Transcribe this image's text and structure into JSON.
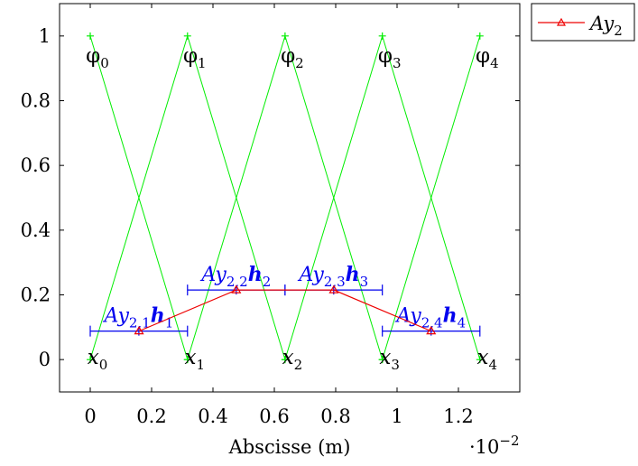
{
  "chart_data": {
    "type": "line",
    "xlabel": "Abscisse (m)",
    "x_scale_label": "·10",
    "x_scale_exponent": "−2",
    "xlim": [
      -0.1,
      1.4
    ],
    "ylim": [
      -0.1,
      1.1
    ],
    "x_ticks": [
      0,
      0.2,
      0.4,
      0.6,
      0.8,
      1,
      1.2
    ],
    "x_tick_labels": [
      "0",
      "0.2",
      "0.4",
      "0.6",
      "0.8",
      "1",
      "1.2"
    ],
    "y_ticks": [
      0,
      0.2,
      0.4,
      0.6,
      0.8,
      1
    ],
    "y_tick_labels": [
      "0",
      "0.2",
      "0.4",
      "0.6",
      "0.8",
      "1"
    ],
    "nodes": [
      0,
      0.317,
      0.635,
      0.952,
      1.27
    ],
    "node_labels": [
      {
        "base": "x",
        "sub": "0"
      },
      {
        "base": "x",
        "sub": "1"
      },
      {
        "base": "x",
        "sub": "2"
      },
      {
        "base": "x",
        "sub": "3"
      },
      {
        "base": "x",
        "sub": "4"
      }
    ],
    "basis_labels": [
      {
        "base": "φ",
        "sub": "0"
      },
      {
        "base": "φ",
        "sub": "1"
      },
      {
        "base": "φ",
        "sub": "2"
      },
      {
        "base": "φ",
        "sub": "3"
      },
      {
        "base": "φ",
        "sub": "4"
      }
    ],
    "basis_color": "#00ee00",
    "series": [
      {
        "name": "Ay₂",
        "legend_base": "Ay",
        "legend_sub": "2",
        "color": "#ee0000",
        "marker": "triangle",
        "x": [
          0.159,
          0.476,
          0.794,
          1.111
        ],
        "y": [
          0.088,
          0.215,
          0.215,
          0.088
        ]
      }
    ],
    "bar_color": "#0000ee",
    "bars": [
      {
        "x0": 0,
        "x1": 0.317,
        "y": 0.088,
        "label": {
          "a": "Ay",
          "s1": "2,1",
          "b": "h",
          "s2": "1"
        }
      },
      {
        "x0": 0.317,
        "x1": 0.635,
        "y": 0.215,
        "label": {
          "a": "Ay",
          "s1": "2,2",
          "b": "h",
          "s2": "2"
        }
      },
      {
        "x0": 0.635,
        "x1": 0.952,
        "y": 0.215,
        "label": {
          "a": "Ay",
          "s1": "2,3",
          "b": "h",
          "s2": "3"
        }
      },
      {
        "x0": 0.952,
        "x1": 1.27,
        "y": 0.088,
        "label": {
          "a": "Ay",
          "s1": "2,4",
          "b": "h",
          "s2": "4"
        }
      }
    ],
    "legend_position": "outside-top-right",
    "grid": false
  }
}
